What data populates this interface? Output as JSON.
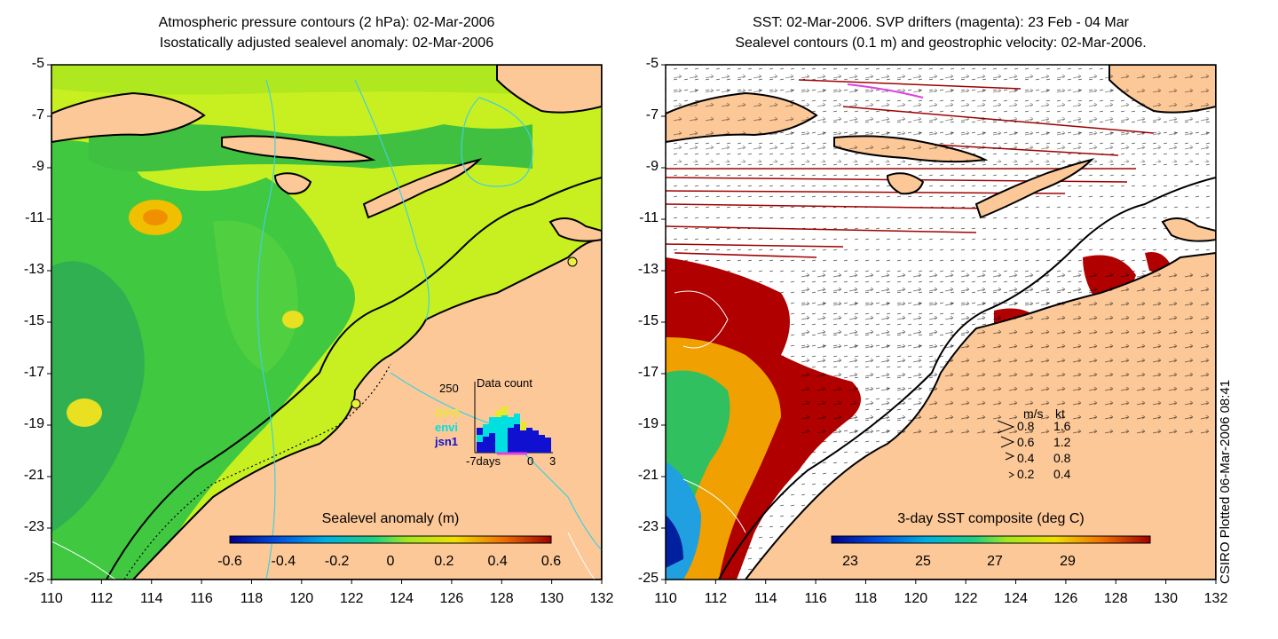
{
  "left_panel": {
    "title_line1": "Atmospheric pressure contours (2 hPa): 02-Mar-2006",
    "title_line2": "Isostatically adjusted sealevel anomaly: 02-Mar-2006",
    "lat_ticks": [
      "-5",
      "-7",
      "-9",
      "-11",
      "-13",
      "-15",
      "-17",
      "-19",
      "-21",
      "-23",
      "-25"
    ],
    "lon_ticks": [
      "110",
      "112",
      "114",
      "116",
      "118",
      "120",
      "122",
      "124",
      "126",
      "128",
      "130",
      "132"
    ],
    "colorbar_title": "Sealevel anomaly (m)",
    "colorbar_ticks": [
      "-0.6",
      "-0.4",
      "-0.2",
      "0",
      "0.2",
      "0.4",
      "0.6"
    ],
    "inset": {
      "title": "Data count",
      "y_max": "250",
      "x_labels": [
        "-7days",
        "0",
        "3"
      ],
      "satellites": [
        "GFO",
        "envi",
        "jsn1"
      ],
      "colors": {
        "GFO": "#e8e830",
        "envi": "#00e0e0",
        "jsn1": "#1010d0"
      }
    }
  },
  "right_panel": {
    "title_line1": "SST: 02-Mar-2006. SVP drifters (magenta): 23 Feb - 04 Mar",
    "title_line2": "Sealevel contours (0.1 m) and geostrophic velocity: 02-Mar-2006.",
    "lat_ticks": [
      "-5",
      "-7",
      "-9",
      "-11",
      "-13",
      "-15",
      "-17",
      "-19",
      "-21",
      "-23",
      "-25"
    ],
    "lon_ticks": [
      "110",
      "112",
      "114",
      "116",
      "118",
      "120",
      "122",
      "124",
      "126",
      "128",
      "130",
      "132"
    ],
    "colorbar_title": "3-day SST composite (deg C)",
    "colorbar_ticks": [
      "23",
      "25",
      "27",
      "29"
    ],
    "velocity_legend": {
      "header_ms": "m/s",
      "header_kt": "kt",
      "rows": [
        {
          "ms": "0.8",
          "kt": "1.6"
        },
        {
          "ms": "0.6",
          "kt": "1.2"
        },
        {
          "ms": "0.4",
          "kt": "0.8"
        },
        {
          "ms": "0.2",
          "kt": "0.4"
        }
      ]
    }
  },
  "credit": "CSIRO Plotted 06-Mar-2006 08:41",
  "colors": {
    "land": "#fcc898",
    "drifter": "#e040e0",
    "sst_hot": "#a00000",
    "sla_green": "#40c040"
  }
}
